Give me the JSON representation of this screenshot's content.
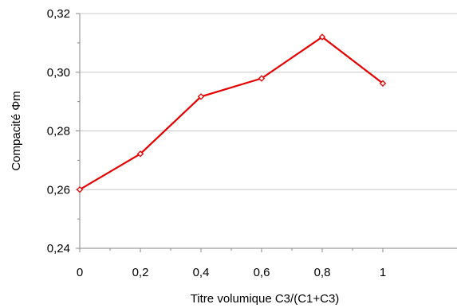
{
  "chart_data": {
    "type": "line",
    "title": "",
    "xlabel": "Titre volumique  C3/(C1+C3)",
    "ylabel": "Compacité Φm",
    "x_ticks": [
      "0",
      "0,2",
      "0,4",
      "0,6",
      "0,8",
      "1"
    ],
    "y_ticks": [
      "0,24",
      "0,26",
      "0,28",
      "0,30",
      "0,32"
    ],
    "xlim": [
      0,
      1
    ],
    "ylim": [
      0.24,
      0.32
    ],
    "grid": "horizontal",
    "legend": "none",
    "series": [
      {
        "x": [
          0,
          0.2,
          0.4,
          0.6,
          0.8,
          1.0
        ],
        "y": [
          0.26,
          0.2722,
          0.2917,
          0.2979,
          0.312,
          0.2962
        ],
        "marker": "diamond-open",
        "color": "#e60000"
      }
    ],
    "colors": {
      "line": "#e60000",
      "grid": "#c8c8c8",
      "axis": "#878787"
    }
  }
}
